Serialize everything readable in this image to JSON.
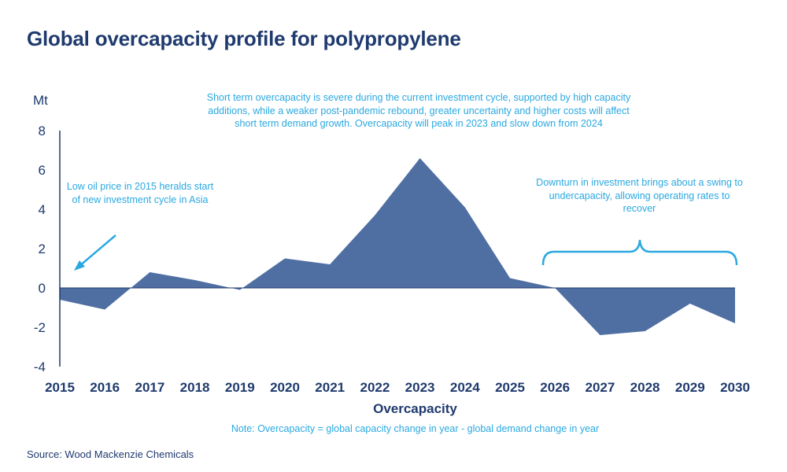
{
  "title": "Global overcapacity profile for polypropylene",
  "source": "Source: Wood Mackenzie Chemicals",
  "colors": {
    "title": "#1f3a6e",
    "area": "#4f6fa3",
    "annotation": "#2aa8e0",
    "axis": "#1f3a6e"
  },
  "chart_data": {
    "type": "area",
    "title": "Global overcapacity profile for polypropylene",
    "xlabel": "Overcapacity",
    "ylabel": "Mt",
    "ylim": [
      -4,
      8
    ],
    "yticks": [
      8,
      6,
      4,
      2,
      0,
      -2,
      -4
    ],
    "grid": false,
    "x": [
      "2015",
      "2016",
      "2017",
      "2018",
      "2019",
      "2020",
      "2021",
      "2022",
      "2023",
      "2024",
      "2025",
      "2026",
      "2027",
      "2028",
      "2029",
      "2030"
    ],
    "series": [
      {
        "values": [
          -0.6,
          -1.1,
          0.8,
          0.4,
          -0.1,
          1.5,
          1.2,
          3.7,
          6.6,
          4.1,
          0.5,
          0.0,
          -2.4,
          -2.2,
          -0.8,
          -1.8
        ]
      }
    ],
    "note": "Note: Overcapacity = global capacity change in year - global demand change in year",
    "annotations": [
      "Low oil price in 2015 heralds start of new investment cycle in Asia",
      "Short term overcapacity is severe during the current investment cycle, supported by high capacity additions, while a weaker post-pandemic rebound, greater uncertainty and higher costs will affect short term demand growth. Overcapacity will peak in 2023 and slow down from 2024",
      "Downturn in investment brings about a swing to undercapacity, allowing operating rates to recover"
    ]
  }
}
